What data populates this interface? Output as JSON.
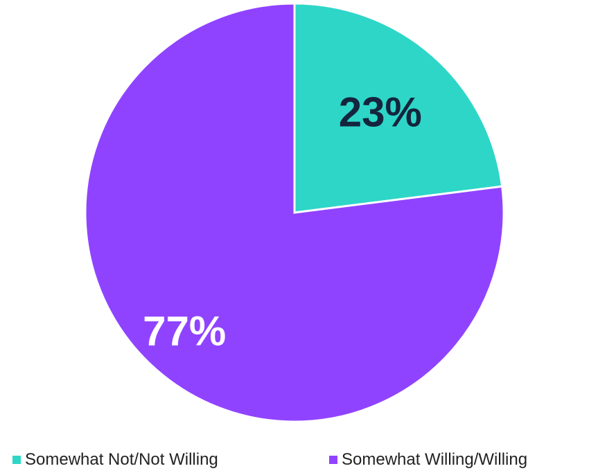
{
  "chart_data": {
    "type": "pie",
    "categories": [
      "Somewhat Not/Not Willing",
      "Somewhat Willing/Willing"
    ],
    "values": [
      23,
      77
    ],
    "data_labels": [
      "23%",
      "77%"
    ],
    "colors": [
      "#2ED6C8",
      "#9043FF"
    ],
    "label_colors": [
      "#14253D",
      "#FFFFFF"
    ],
    "start_angle_deg": 0,
    "direction": "clockwise",
    "legend_position": "bottom"
  }
}
